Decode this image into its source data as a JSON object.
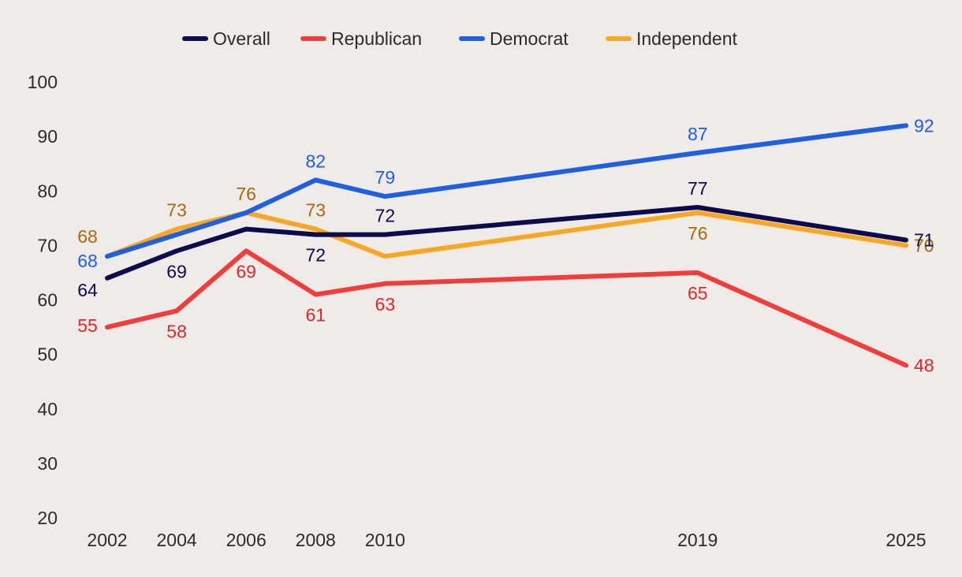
{
  "chart_data": {
    "type": "line",
    "title": "",
    "xlabel": "",
    "ylabel": "",
    "ylim": [
      20,
      100
    ],
    "yticks": [
      20,
      30,
      40,
      50,
      60,
      70,
      80,
      90,
      100
    ],
    "x": [
      2002,
      2004,
      2006,
      2008,
      2010,
      2019,
      2025
    ],
    "x_labels": [
      "2002",
      "2004",
      "2006",
      "2008",
      "2010",
      "2019",
      "2025"
    ],
    "grid": false,
    "legend_position": "top-center",
    "series": [
      {
        "name": "Independent",
        "color": "#f9a825",
        "label_color": "#a8690e",
        "values": [
          68,
          73,
          76,
          73,
          68,
          76,
          70
        ],
        "labels": [
          "68",
          "73",
          "76",
          "73",
          null,
          "76",
          "70"
        ]
      },
      {
        "name": "Democrat",
        "color": "#1f5fe0",
        "label_color": "#1f5fe0",
        "values": [
          68,
          72,
          76,
          82,
          79,
          87,
          92
        ],
        "labels": [
          "68",
          null,
          null,
          "82",
          "79",
          "87",
          "92"
        ]
      },
      {
        "name": "Republican",
        "color": "#f23d3d",
        "label_color": "#e02828",
        "values": [
          55,
          58,
          69,
          61,
          63,
          65,
          48
        ],
        "labels": [
          "55",
          "58",
          "69",
          "61",
          "63",
          "65",
          "48"
        ]
      },
      {
        "name": "Overall",
        "color": "#0b0b4e",
        "label_color": "#0b0b4e",
        "values": [
          64,
          69,
          73,
          72,
          72,
          77,
          71
        ],
        "labels": [
          "64",
          "69",
          null,
          "72",
          "72",
          "77",
          "71"
        ]
      }
    ],
    "legend_order": [
      "Overall",
      "Republican",
      "Democrat",
      "Independent"
    ]
  }
}
